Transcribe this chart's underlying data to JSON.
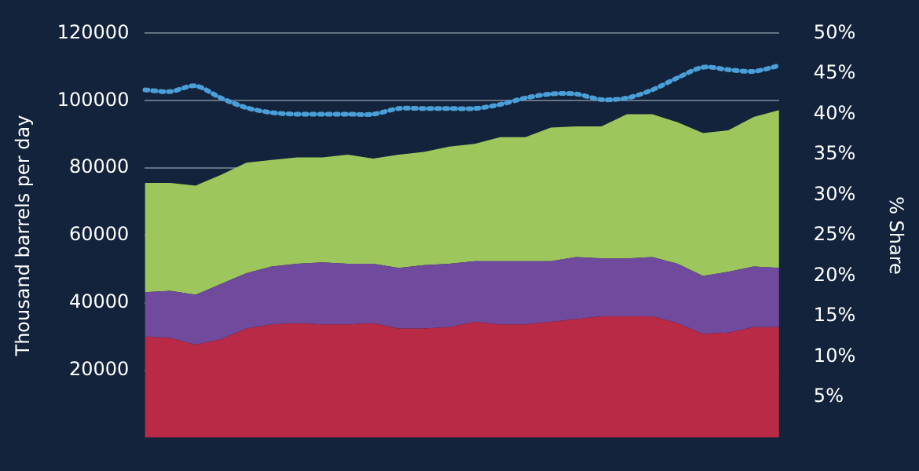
{
  "chart_data": {
    "type": "area",
    "stacked": true,
    "ylabel": "Thousand barrels per day",
    "y2label": "% Share",
    "categories": [
      null,
      null,
      null,
      null,
      null,
      null,
      null,
      null,
      null,
      null,
      null,
      null,
      null,
      null,
      null,
      null,
      null,
      null,
      null,
      null,
      null,
      null,
      null,
      null,
      null,
      null
    ],
    "series": [
      {
        "color": "#b82a45",
        "values": [
          30000,
          29600,
          27600,
          29200,
          32400,
          33600,
          34000,
          33600,
          33600,
          34000,
          32400,
          32400,
          32800,
          34400,
          33600,
          33600,
          34400,
          35200,
          36000,
          36000,
          36000,
          34000,
          30800,
          31200,
          32800,
          32800
        ]
      },
      {
        "color": "#704a9c",
        "values": [
          13200,
          14000,
          14800,
          16400,
          16400,
          17200,
          17600,
          18400,
          18000,
          17600,
          18000,
          18800,
          18800,
          18000,
          18800,
          18800,
          18000,
          18400,
          17200,
          17200,
          17600,
          17600,
          17200,
          18000,
          18000,
          17600
        ]
      },
      {
        "color": "#9dc65c",
        "values": [
          32400,
          32000,
          32400,
          32400,
          32800,
          31600,
          31600,
          31200,
          32400,
          31200,
          33600,
          33600,
          34800,
          34800,
          36800,
          36800,
          39600,
          38800,
          39200,
          42800,
          42400,
          42000,
          42400,
          42000,
          44400,
          46800
        ]
      },
      {
        "type": "line",
        "axis": "y2",
        "color": "#4a9fd8",
        "line_style": "dotted",
        "values": [
          43,
          42.8,
          43.5,
          42,
          40.8,
          40.2,
          40,
          40,
          40,
          40,
          40.7,
          40.7,
          40.7,
          40.7,
          41.2,
          42,
          42.5,
          42.5,
          41.8,
          42,
          43,
          44.5,
          45.8,
          45.5,
          45.3,
          46
        ]
      }
    ],
    "ylim": [
      0,
      120000
    ],
    "yticks": [
      20000,
      40000,
      60000,
      80000,
      100000,
      120000
    ],
    "y2lim": [
      0,
      50
    ],
    "y2ticks": [
      {
        "value": 5,
        "label": "5%"
      },
      {
        "value": 10,
        "label": "10%"
      },
      {
        "value": 15,
        "label": "15%"
      },
      {
        "value": 20,
        "label": "20%"
      },
      {
        "value": 25,
        "label": "25%"
      },
      {
        "value": 30,
        "label": "30%"
      },
      {
        "value": 35,
        "label": "35%"
      },
      {
        "value": 40,
        "label": "40%"
      },
      {
        "value": 45,
        "label": "45%"
      },
      {
        "value": 50,
        "label": "50%"
      }
    ],
    "grid": "y",
    "tick_labels": "y",
    "marker": "none"
  }
}
